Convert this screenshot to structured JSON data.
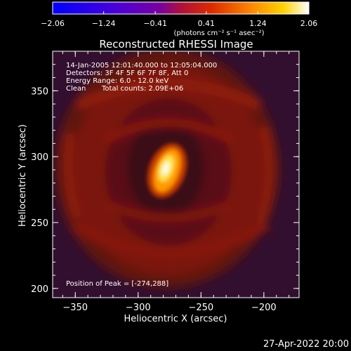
{
  "chart_data": {
    "type": "heatmap",
    "title": "Reconstructed RHESSI Image",
    "xlabel": "Heliocentric X (arcsec)",
    "ylabel": "Heliocentric Y (arcsec)",
    "xlim": [
      -368,
      -172
    ],
    "ylim": [
      193,
      380
    ],
    "x_ticks": [
      {
        "value": -350,
        "label": "−350"
      },
      {
        "value": -300,
        "label": "−300"
      },
      {
        "value": -250,
        "label": "−250"
      },
      {
        "value": -200,
        "label": "−200"
      }
    ],
    "y_ticks": [
      {
        "value": 200,
        "label": "200"
      },
      {
        "value": 250,
        "label": "250"
      },
      {
        "value": 300,
        "label": "300"
      },
      {
        "value": 350,
        "label": "350"
      }
    ],
    "colorbar": {
      "range": [
        -2.06,
        2.06
      ],
      "ticks": [
        {
          "value": -2.06,
          "label": "−2.06"
        },
        {
          "value": -1.24,
          "label": "−1.24"
        },
        {
          "value": -0.41,
          "label": "−0.41"
        },
        {
          "value": 0.41,
          "label": "0.41"
        },
        {
          "value": 1.24,
          "label": "1.24"
        },
        {
          "value": 2.06,
          "label": "2.06"
        }
      ],
      "label": "(photons cm⁻² s⁻¹ asec⁻²)"
    },
    "annotations": [
      "14-Jan-2005 12:01:40.000 to 12:05:04.000",
      "Detectors: 3F 4F 5F 6F 7F 8F, Att 0",
      "Energy Range: 6.0 - 12.0 keV",
      "Clean",
      "Total counts: 2.09E+06"
    ],
    "peak": {
      "label": "Position of Peak = [-274,288]",
      "x": -274,
      "y": 288
    },
    "grid": false,
    "legend": "none"
  },
  "footer": {
    "timestamp": "27-Apr-2022 20:00"
  },
  "colors": {
    "background": "#000000",
    "text": "#ffffff"
  }
}
